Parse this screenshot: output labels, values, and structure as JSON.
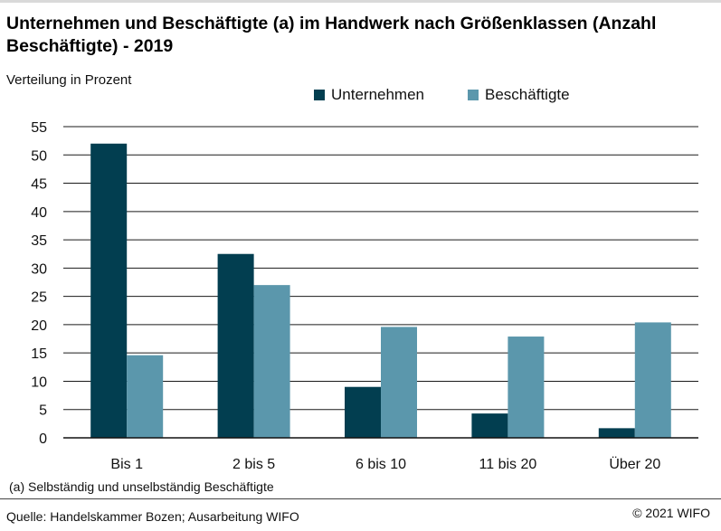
{
  "chart_data": {
    "type": "bar",
    "title": "Unternehmen und Beschäftigte (a) im Handwerk nach Größenklassen (Anzahl Beschäftigte) - 2019",
    "ylabel": "Verteilung in Prozent",
    "categories": [
      "Bis 1",
      "2 bis 5",
      "6 bis 10",
      "11 bis 20",
      "Über 20"
    ],
    "series": [
      {
        "name": "Unternehmen",
        "color": "#023e50",
        "values": [
          52.0,
          32.5,
          9.0,
          4.3,
          1.7
        ]
      },
      {
        "name": "Beschäftigte",
        "color": "#5b97ac",
        "values": [
          14.6,
          27.0,
          19.6,
          17.9,
          20.4
        ]
      }
    ],
    "ylim": [
      0,
      55
    ],
    "yticks": [
      0,
      5,
      10,
      15,
      20,
      25,
      30,
      35,
      40,
      45,
      50,
      55
    ],
    "grid": true,
    "legend_position": "top-center",
    "footnote": "(a) Selbständig und unselbständig Beschäftigte",
    "source": "Quelle: Handelskammer Bozen; Ausarbeitung WIFO",
    "copyright": "© 2021 WIFO"
  }
}
